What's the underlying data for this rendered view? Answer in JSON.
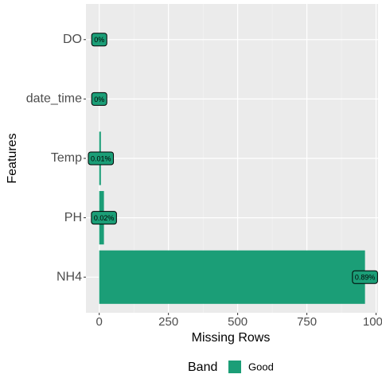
{
  "chart_data": {
    "type": "bar",
    "orientation": "horizontal",
    "x_label": "Missing Rows",
    "y_label": "Features",
    "categories": [
      "NH4",
      "PH",
      "Temp",
      "date_time",
      "DO"
    ],
    "values": [
      960,
      17,
      6,
      0,
      0
    ],
    "percent_values": [
      0.89,
      0.02,
      0.01,
      0,
      0
    ],
    "percent_labels": [
      "0.89%",
      "0.02%",
      "0.01%",
      "0%",
      "0%"
    ],
    "color": "#1b9e77",
    "xlim": [
      -48,
      1007
    ],
    "xticks": [
      0,
      250,
      500,
      750,
      1000
    ],
    "xminor_ticks": [
      125,
      375,
      625,
      875
    ],
    "grid": true,
    "legend": {
      "title": "Band",
      "entries": [
        "Good"
      ],
      "position": "bottom"
    }
  }
}
